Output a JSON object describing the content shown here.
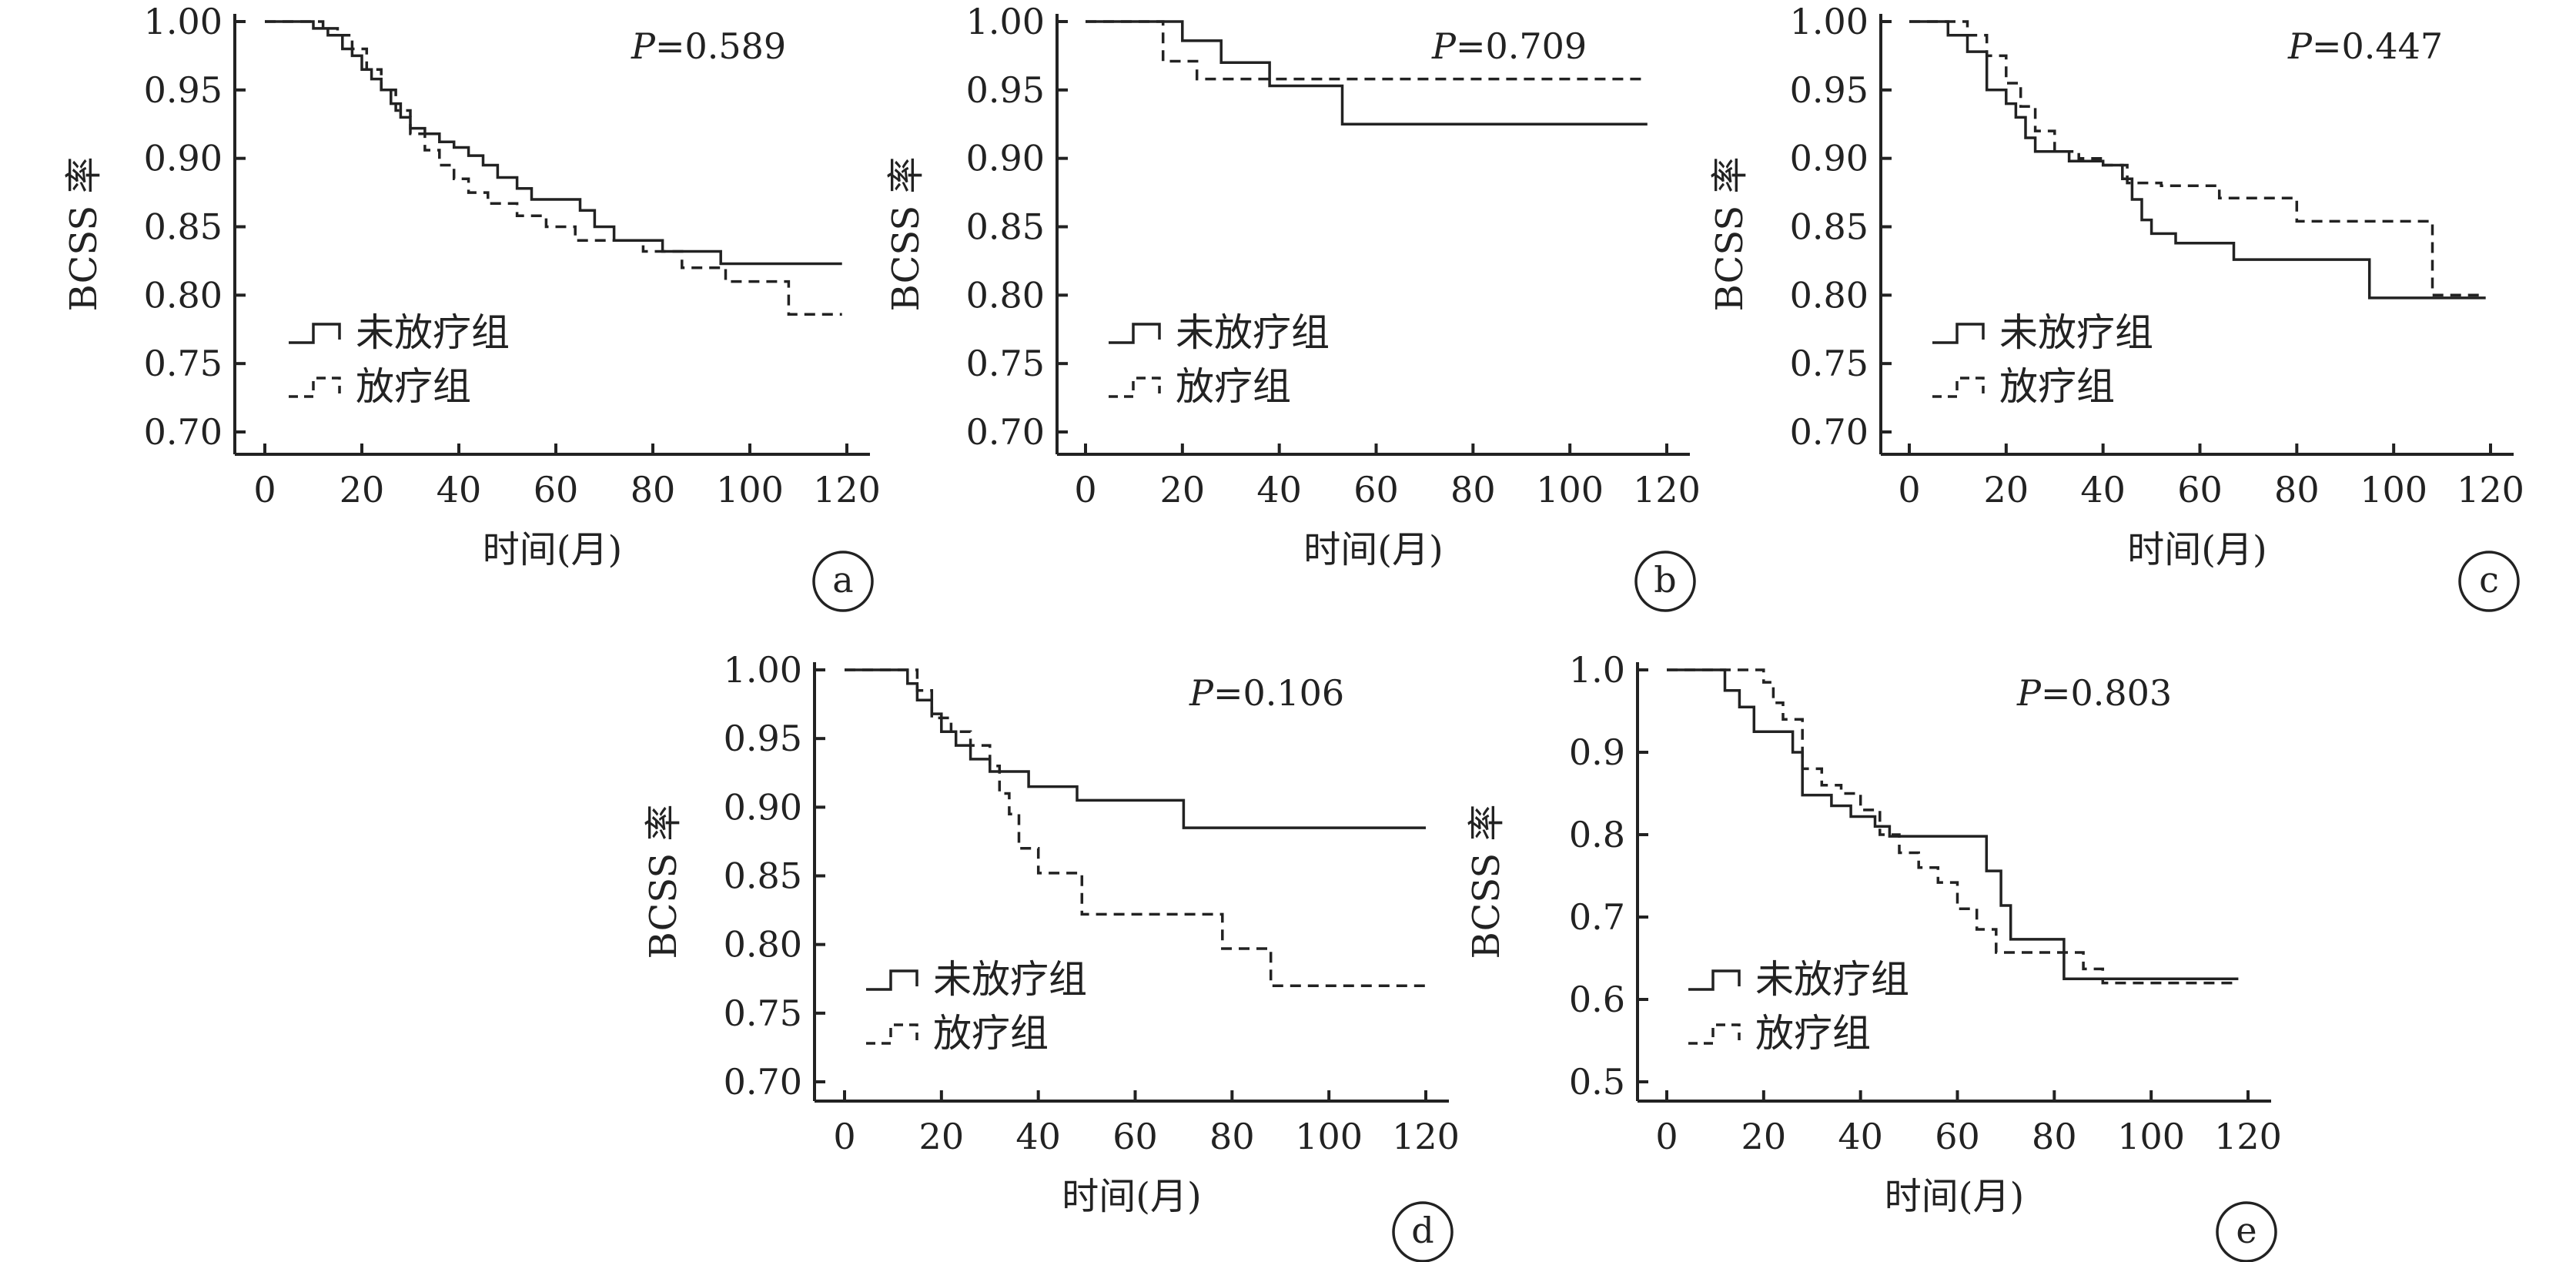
{
  "legend": {
    "untreated": "未放疗组",
    "treated": "放疗组"
  },
  "chart_data": [
    {
      "type": "line",
      "panel": "a",
      "annotation": "P=0.589",
      "xlabel": "时间(月)",
      "ylabel": "BCSS 率",
      "xlim": [
        0,
        120
      ],
      "ylim": [
        0.68,
        1.0
      ],
      "xticks": [
        "0",
        "20",
        "40",
        "60",
        "80",
        "100",
        "120"
      ],
      "yticks": [
        "0.70",
        "0.75",
        "0.80",
        "0.85",
        "0.90",
        "0.95",
        "1.00"
      ],
      "series": [
        {
          "name": "未放疗组",
          "style": "solid",
          "x": [
            0,
            10,
            13,
            16,
            18,
            20,
            22,
            24,
            26,
            28,
            30,
            33,
            36,
            39,
            42,
            45,
            48,
            52,
            55,
            60,
            65,
            68,
            72,
            78,
            82,
            94,
            119
          ],
          "y": [
            1.0,
            0.995,
            0.99,
            0.98,
            0.975,
            0.965,
            0.958,
            0.95,
            0.94,
            0.93,
            0.922,
            0.918,
            0.912,
            0.908,
            0.902,
            0.895,
            0.886,
            0.878,
            0.87,
            0.87,
            0.862,
            0.85,
            0.84,
            0.84,
            0.832,
            0.823,
            0.823
          ]
        },
        {
          "name": "放疗组",
          "style": "dashed",
          "x": [
            0,
            12,
            15,
            18,
            21,
            24,
            27,
            30,
            33,
            36,
            39,
            42,
            46,
            52,
            58,
            64,
            70,
            78,
            86,
            95,
            108,
            119
          ],
          "y": [
            1.0,
            0.995,
            0.99,
            0.98,
            0.965,
            0.95,
            0.935,
            0.918,
            0.906,
            0.895,
            0.885,
            0.875,
            0.867,
            0.858,
            0.85,
            0.84,
            0.84,
            0.832,
            0.82,
            0.81,
            0.786,
            0.786
          ]
        }
      ]
    },
    {
      "type": "line",
      "panel": "b",
      "annotation": "P=0.709",
      "xlabel": "时间(月)",
      "ylabel": "BCSS 率",
      "xlim": [
        0,
        120
      ],
      "ylim": [
        0.68,
        1.0
      ],
      "xticks": [
        "0",
        "20",
        "40",
        "60",
        "80",
        "100",
        "120"
      ],
      "yticks": [
        "0.70",
        "0.75",
        "0.80",
        "0.85",
        "0.90",
        "0.95",
        "1.00"
      ],
      "series": [
        {
          "name": "未放疗组",
          "style": "solid",
          "x": [
            0,
            20,
            28,
            38,
            53,
            116
          ],
          "y": [
            1.0,
            0.986,
            0.97,
            0.953,
            0.925,
            0.925
          ]
        },
        {
          "name": "放疗组",
          "style": "dashed",
          "x": [
            0,
            16,
            23,
            116
          ],
          "y": [
            1.0,
            0.971,
            0.958,
            0.958
          ]
        }
      ]
    },
    {
      "type": "line",
      "panel": "c",
      "annotation": "P=0.447",
      "xlabel": "时间(月)",
      "ylabel": "BCSS 率",
      "xlim": [
        0,
        120
      ],
      "ylim": [
        0.68,
        1.0
      ],
      "xticks": [
        "0",
        "20",
        "40",
        "60",
        "80",
        "100",
        "120"
      ],
      "yticks": [
        "0.70",
        "0.75",
        "0.80",
        "0.85",
        "0.90",
        "0.95",
        "1.00"
      ],
      "series": [
        {
          "name": "未放疗组",
          "style": "solid",
          "x": [
            0,
            8,
            12,
            16,
            20,
            22,
            24,
            26,
            33,
            40,
            44,
            46,
            48,
            50,
            55,
            67,
            95,
            119
          ],
          "y": [
            1.0,
            0.99,
            0.978,
            0.95,
            0.94,
            0.93,
            0.915,
            0.905,
            0.898,
            0.895,
            0.885,
            0.87,
            0.855,
            0.845,
            0.838,
            0.826,
            0.798,
            0.798
          ]
        },
        {
          "name": "放疗组",
          "style": "dashed",
          "x": [
            0,
            12,
            16,
            20,
            23,
            26,
            30,
            35,
            40,
            45,
            52,
            64,
            80,
            108,
            119
          ],
          "y": [
            1.0,
            0.99,
            0.975,
            0.955,
            0.938,
            0.92,
            0.905,
            0.9,
            0.895,
            0.882,
            0.88,
            0.871,
            0.854,
            0.8,
            0.8
          ]
        }
      ]
    },
    {
      "type": "line",
      "panel": "d",
      "annotation": "P=0.106",
      "xlabel": "时间(月)",
      "ylabel": "BCSS 率",
      "xlim": [
        0,
        120
      ],
      "ylim": [
        0.68,
        1.0
      ],
      "xticks": [
        "0",
        "20",
        "40",
        "60",
        "80",
        "100",
        "120"
      ],
      "yticks": [
        "0.70",
        "0.75",
        "0.80",
        "0.85",
        "0.90",
        "0.95",
        "1.00"
      ],
      "series": [
        {
          "name": "未放疗组",
          "style": "solid",
          "x": [
            0,
            13,
            15,
            18,
            20,
            23,
            26,
            30,
            38,
            48,
            70,
            120
          ],
          "y": [
            1.0,
            0.99,
            0.978,
            0.968,
            0.955,
            0.945,
            0.935,
            0.926,
            0.915,
            0.905,
            0.885,
            0.885
          ]
        },
        {
          "name": "放疗组",
          "style": "dashed",
          "x": [
            0,
            15,
            18,
            22,
            26,
            30,
            32,
            34,
            36,
            40,
            49,
            78,
            88,
            120
          ],
          "y": [
            1.0,
            0.985,
            0.965,
            0.955,
            0.945,
            0.93,
            0.91,
            0.895,
            0.87,
            0.852,
            0.822,
            0.797,
            0.77,
            0.77
          ]
        }
      ]
    },
    {
      "type": "line",
      "panel": "e",
      "annotation": "P=0.803",
      "xlabel": "时间(月)",
      "ylabel": "BCSS 率",
      "xlim": [
        0,
        120
      ],
      "ylim": [
        0.47,
        1.0
      ],
      "xticks": [
        "0",
        "20",
        "40",
        "60",
        "80",
        "100",
        "120"
      ],
      "yticks": [
        "0.5",
        "0.6",
        "0.7",
        "0.8",
        "0.9",
        "1.0"
      ],
      "series": [
        {
          "name": "未放疗组",
          "style": "solid",
          "x": [
            0,
            12,
            15,
            18,
            26,
            28,
            34,
            38,
            43,
            46,
            66,
            69,
            71,
            82,
            118
          ],
          "y": [
            1.0,
            0.975,
            0.955,
            0.925,
            0.9,
            0.848,
            0.835,
            0.822,
            0.81,
            0.798,
            0.756,
            0.714,
            0.673,
            0.625,
            0.625
          ]
        },
        {
          "name": "放疗组",
          "style": "dashed",
          "x": [
            0,
            20,
            22,
            24,
            28,
            32,
            36,
            40,
            44,
            48,
            52,
            56,
            60,
            64,
            68,
            86,
            90,
            118
          ],
          "y": [
            1.0,
            0.985,
            0.96,
            0.94,
            0.88,
            0.86,
            0.85,
            0.83,
            0.8,
            0.778,
            0.76,
            0.742,
            0.71,
            0.685,
            0.657,
            0.637,
            0.62,
            0.62
          ]
        }
      ]
    }
  ]
}
